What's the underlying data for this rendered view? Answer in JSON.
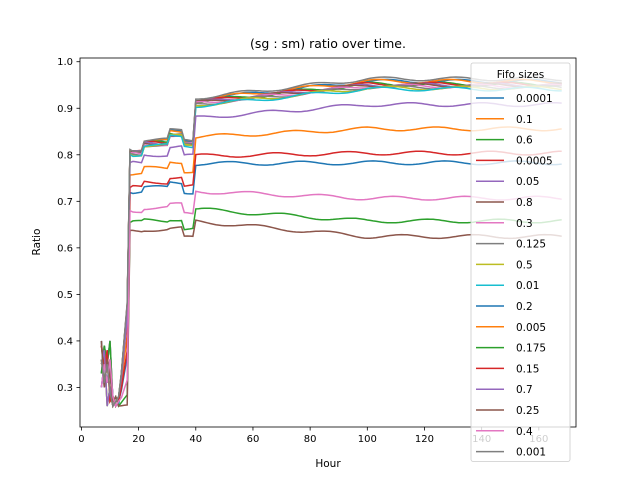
{
  "chart_data": {
    "type": "line",
    "title": "(sg : sm) ratio over time.",
    "xlabel": "Hour",
    "ylabel": "Ratio",
    "xlim": [
      -0.5,
      173
    ],
    "ylim": [
      0.215,
      1.008
    ],
    "xticks": [
      0,
      20,
      40,
      60,
      80,
      100,
      120,
      140,
      160
    ],
    "yticks": [
      0.3,
      0.4,
      0.5,
      0.6,
      0.7,
      0.8,
      0.9,
      1.0
    ],
    "xtick_labels": [
      "0",
      "20",
      "40",
      "60",
      "80",
      "100",
      "120",
      "140",
      "160"
    ],
    "ytick_labels": [
      "0.3",
      "0.4",
      "0.5",
      "0.6",
      "0.7",
      "0.8",
      "0.9",
      "1.0"
    ],
    "grid": false,
    "legend_title": "Fifo sizes",
    "legend_position": "right",
    "x_range": [
      7,
      168
    ],
    "series": [
      {
        "name": "0.0001",
        "color": "#1f77b4",
        "plateau": 0.953
      },
      {
        "name": "0.1",
        "color": "#ff7f0e",
        "plateau": 0.953
      },
      {
        "name": "0.6",
        "color": "#2ca02c",
        "plateau": 0.947
      },
      {
        "name": "0.0005",
        "color": "#d62728",
        "plateau": 0.947
      },
      {
        "name": "0.05",
        "color": "#9467bd",
        "plateau": 0.945
      },
      {
        "name": "0.8",
        "color": "#8c564b",
        "plateau": 0.945
      },
      {
        "name": "0.3",
        "color": "#e377c2",
        "plateau": 0.943
      },
      {
        "name": "0.125",
        "color": "#7f7f7f",
        "plateau": 0.941
      },
      {
        "name": "0.5",
        "color": "#bcbd22",
        "plateau": 0.939
      },
      {
        "name": "0.01",
        "color": "#17becf",
        "plateau": 0.937
      },
      {
        "name": "0.2",
        "color": "#1f77b4",
        "plateau": 0.785
      },
      {
        "name": "0.005",
        "color": "#ff7f0e",
        "plateau": 0.855
      },
      {
        "name": "0.175",
        "color": "#2ca02c",
        "plateau": 0.665
      },
      {
        "name": "0.15",
        "color": "#d62728",
        "plateau": 0.805
      },
      {
        "name": "0.7",
        "color": "#9467bd",
        "plateau": 0.905
      },
      {
        "name": "0.25",
        "color": "#8c564b",
        "plateau": 0.633
      },
      {
        "name": "0.4",
        "color": "#e377c2",
        "plateau": 0.712
      },
      {
        "name": "0.001",
        "color": "#7f7f7f",
        "plateau": 0.958
      }
    ]
  }
}
